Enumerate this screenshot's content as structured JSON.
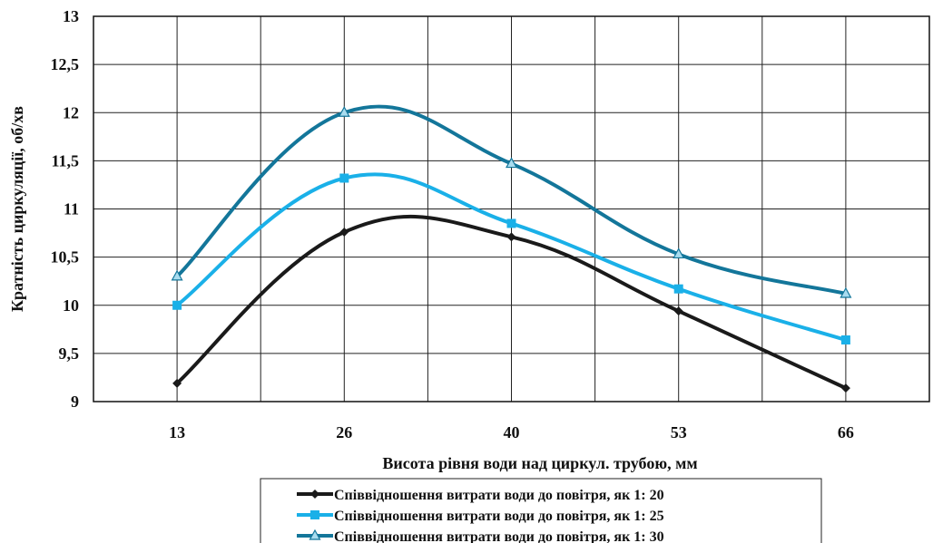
{
  "chart_data": {
    "type": "line",
    "title": "",
    "xlabel": "Висота рівня води над циркул. трубою, мм",
    "ylabel": "Кратність циркуляції, об/хв",
    "categories": [
      "13",
      "26",
      "40",
      "53",
      "66"
    ],
    "ylim": [
      9,
      13
    ],
    "yticks": [
      {
        "value": 9,
        "label": "9"
      },
      {
        "value": 9.5,
        "label": "9,5"
      },
      {
        "value": 10,
        "label": "10"
      },
      {
        "value": 10.5,
        "label": "10,5"
      },
      {
        "value": 11,
        "label": "11"
      },
      {
        "value": 11.5,
        "label": "11,5"
      },
      {
        "value": 12,
        "label": "12"
      },
      {
        "value": 12.5,
        "label": "12,5"
      },
      {
        "value": 13,
        "label": "13"
      }
    ],
    "grid": true,
    "legend_position": "bottom",
    "series": [
      {
        "name": "Співвідношення витрати води до повітря, як 1: 20",
        "color": "#1a1a1a",
        "marker": "diamond",
        "values": [
          9.19,
          10.76,
          10.71,
          9.94,
          9.14
        ]
      },
      {
        "name": "Співвідношення витрати води до повітря, як 1: 25",
        "color": "#1ab0e8",
        "marker": "square",
        "values": [
          10.0,
          11.32,
          10.85,
          10.17,
          9.64
        ]
      },
      {
        "name": "Співвідношення витрати води до повітря, як 1: 30",
        "color": "#13769a",
        "marker": "triangle",
        "values": [
          10.3,
          12.0,
          11.47,
          10.53,
          10.12
        ]
      }
    ]
  }
}
